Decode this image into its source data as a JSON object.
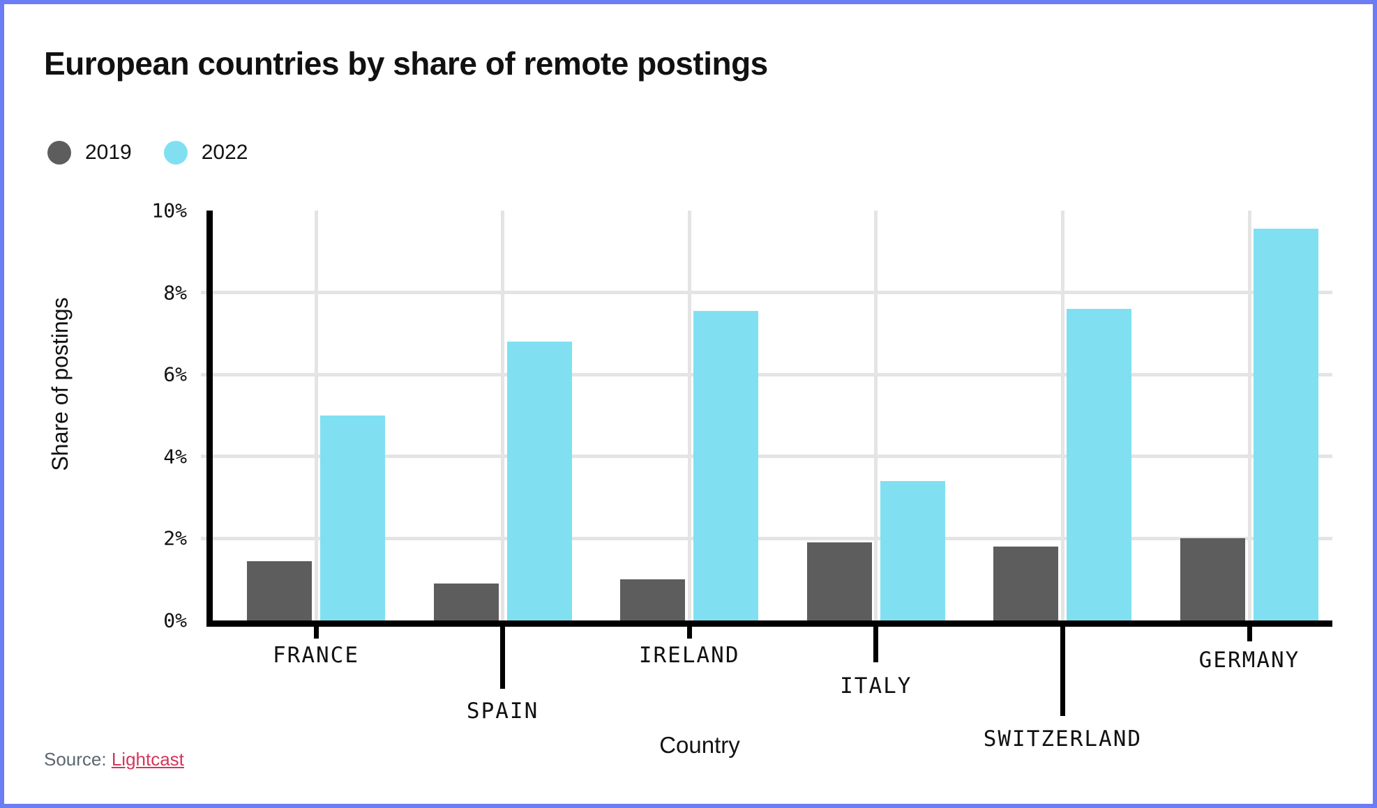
{
  "frame": {
    "border_color": "#6b7cf4",
    "background": "#ffffff"
  },
  "title": "European countries by share of remote postings",
  "legend": {
    "items": [
      {
        "label": "2019",
        "color": "#5d5d5d"
      },
      {
        "label": "2022",
        "color": "#80e0f2"
      }
    ]
  },
  "axes": {
    "x_title": "Country",
    "y_title": "Share of postings"
  },
  "source": {
    "prefix": "Source:",
    "link_text": "Lightcast"
  },
  "chart_data": {
    "type": "bar",
    "title": "European countries by share of remote postings",
    "categories": [
      "FRANCE",
      "SPAIN",
      "IRELAND",
      "ITALY",
      "SWITZERLAND",
      "GERMANY"
    ],
    "series": [
      {
        "name": "2019",
        "color": "#5d5d5d",
        "values": [
          1.45,
          0.9,
          1.0,
          1.9,
          1.8,
          2.0
        ]
      },
      {
        "name": "2022",
        "color": "#80e0f2",
        "values": [
          5.0,
          6.8,
          7.55,
          3.4,
          7.6,
          9.55
        ]
      }
    ],
    "xlabel": "Country",
    "ylabel": "Share of postings",
    "ylim": [
      0,
      10
    ],
    "yticks": [
      "0%",
      "2%",
      "4%",
      "6%",
      "8%",
      "10%"
    ],
    "ytick_values": [
      0,
      2,
      4,
      6,
      8,
      10
    ],
    "grid": true,
    "legend_position": "top-left",
    "gridline_color": "#e4e4e4",
    "axis_color": "#000000"
  }
}
